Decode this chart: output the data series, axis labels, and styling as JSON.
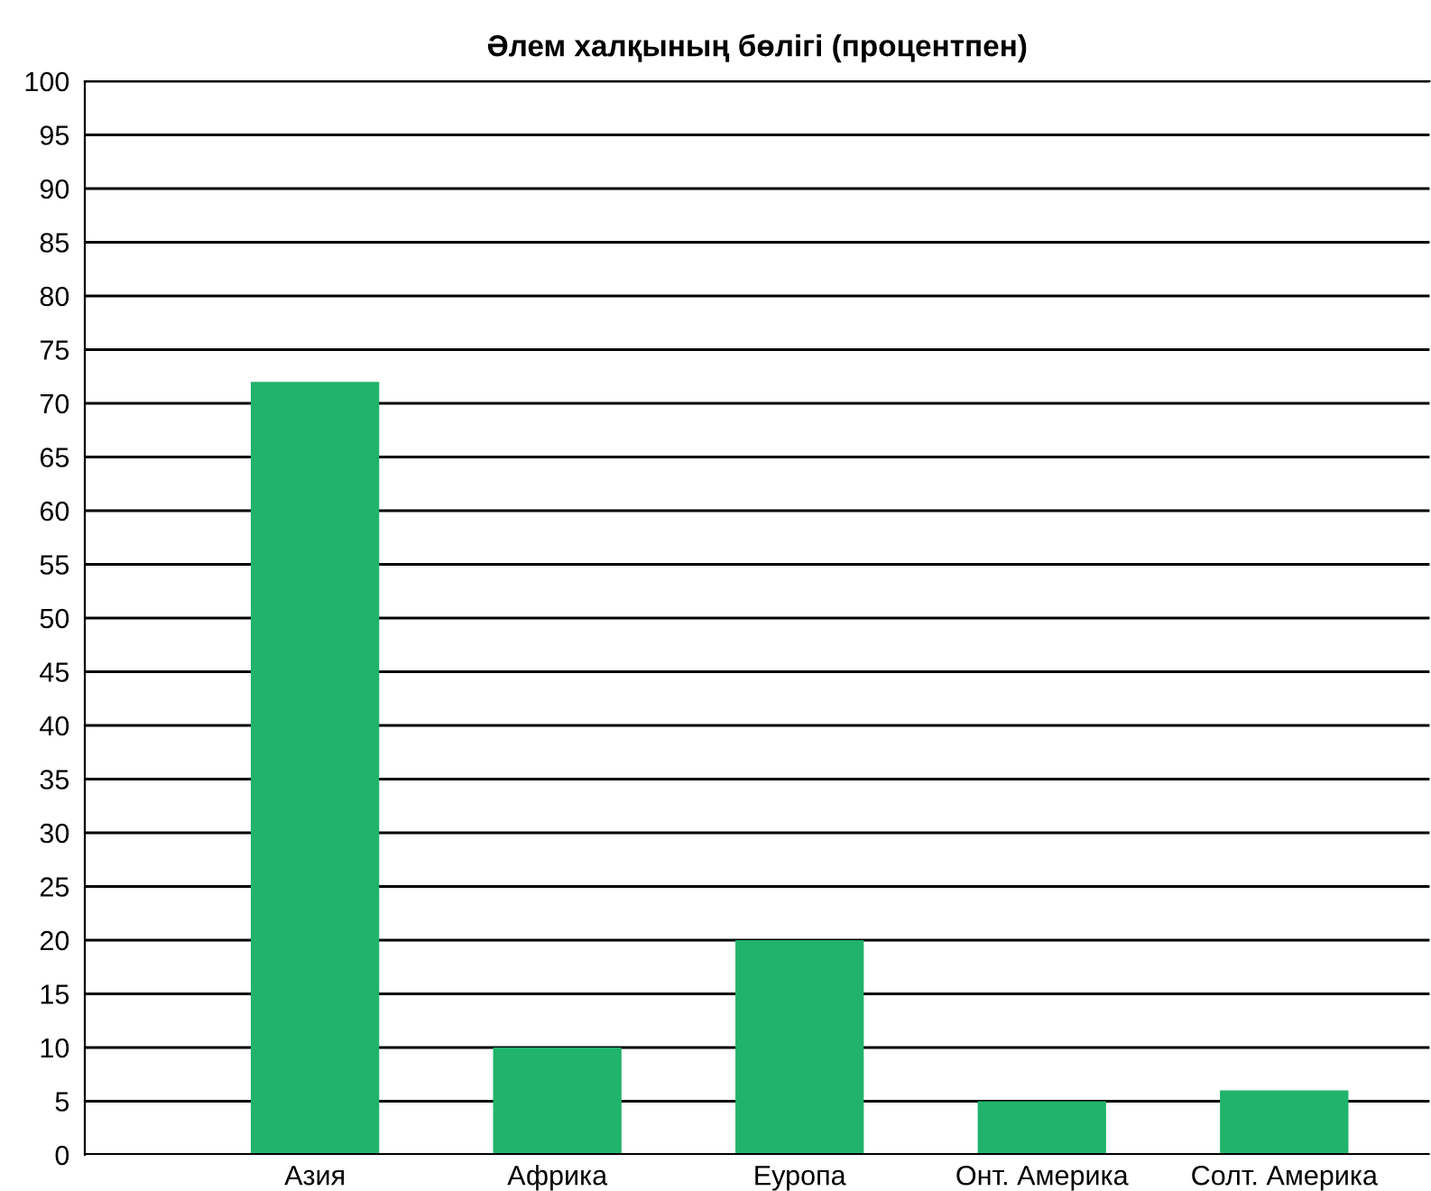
{
  "chart_data": {
    "type": "bar",
    "title": "Әлем халқының бөлігі (процентпен)",
    "categories": [
      "Азия",
      "Африка",
      "Еуропа",
      "Онт. Америка",
      "Солт. Америка"
    ],
    "values": [
      72,
      10,
      20,
      5,
      6
    ],
    "color": "#21b36b",
    "ylim": [
      0,
      100
    ],
    "yticks": [
      0,
      5,
      10,
      15,
      20,
      25,
      30,
      35,
      40,
      45,
      50,
      55,
      60,
      65,
      70,
      75,
      80,
      85,
      90,
      95,
      100
    ],
    "grid": "y",
    "legend": false
  }
}
